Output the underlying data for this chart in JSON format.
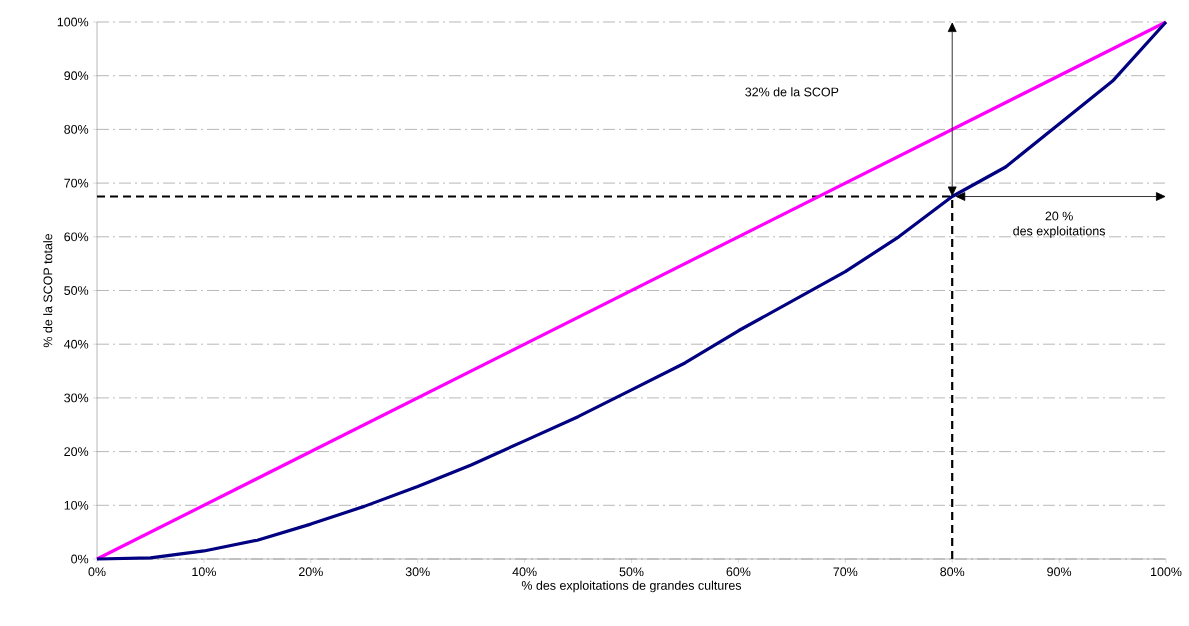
{
  "chart_data": {
    "type": "line",
    "xlabel": "% des exploitations de grandes cultures",
    "ylabel": "% de la SCOP totale",
    "series": [
      {
        "color": "#ff00ff",
        "x": [
          0,
          100
        ],
        "values": [
          0,
          100
        ]
      },
      {
        "color": "#000080",
        "x": [
          0,
          5,
          10,
          15,
          20,
          25,
          30,
          35,
          40,
          45,
          50,
          55,
          60,
          65,
          70,
          75,
          80,
          85,
          90,
          95,
          100
        ],
        "values": [
          0,
          0.2,
          1.5,
          3.5,
          6.5,
          9.8,
          13.5,
          17.5,
          22,
          26.5,
          31.5,
          36.5,
          42.5,
          48,
          53.5,
          60,
          67.5,
          73,
          81,
          89,
          100
        ]
      }
    ],
    "xlim": [
      0,
      100
    ],
    "ylim": [
      0,
      100
    ],
    "xticks": [
      {
        "value": 0,
        "label": "0%"
      },
      {
        "value": 10,
        "label": "10%"
      },
      {
        "value": 20,
        "label": "20%"
      },
      {
        "value": 30,
        "label": "30%"
      },
      {
        "value": 40,
        "label": "40%"
      },
      {
        "value": 50,
        "label": "50%"
      },
      {
        "value": 60,
        "label": "60%"
      },
      {
        "value": 70,
        "label": "70%"
      },
      {
        "value": 80,
        "label": "80%"
      },
      {
        "value": 90,
        "label": "90%"
      },
      {
        "value": 100,
        "label": "100%"
      }
    ],
    "yticks": [
      {
        "value": 0,
        "label": "0%"
      },
      {
        "value": 10,
        "label": "10%"
      },
      {
        "value": 20,
        "label": "20%"
      },
      {
        "value": 30,
        "label": "30%"
      },
      {
        "value": 40,
        "label": "40%"
      },
      {
        "value": 50,
        "label": "50%"
      },
      {
        "value": 60,
        "label": "60%"
      },
      {
        "value": 70,
        "label": "70%"
      },
      {
        "value": 80,
        "label": "80%"
      },
      {
        "value": 90,
        "label": "90%"
      },
      {
        "value": 100,
        "label": "100%"
      }
    ],
    "ref_lines": [
      {
        "axis": "x",
        "value": 80,
        "color": "#000000",
        "line_style": "dashed"
      },
      {
        "axis": "y",
        "value": 67.5,
        "color": "#000000",
        "line_style": "dashed"
      }
    ],
    "annotations": [
      "32%  de la SCOP",
      "20 %",
      "des exploitations"
    ],
    "grid": "y",
    "marker": "none",
    "line_style": "solid"
  }
}
